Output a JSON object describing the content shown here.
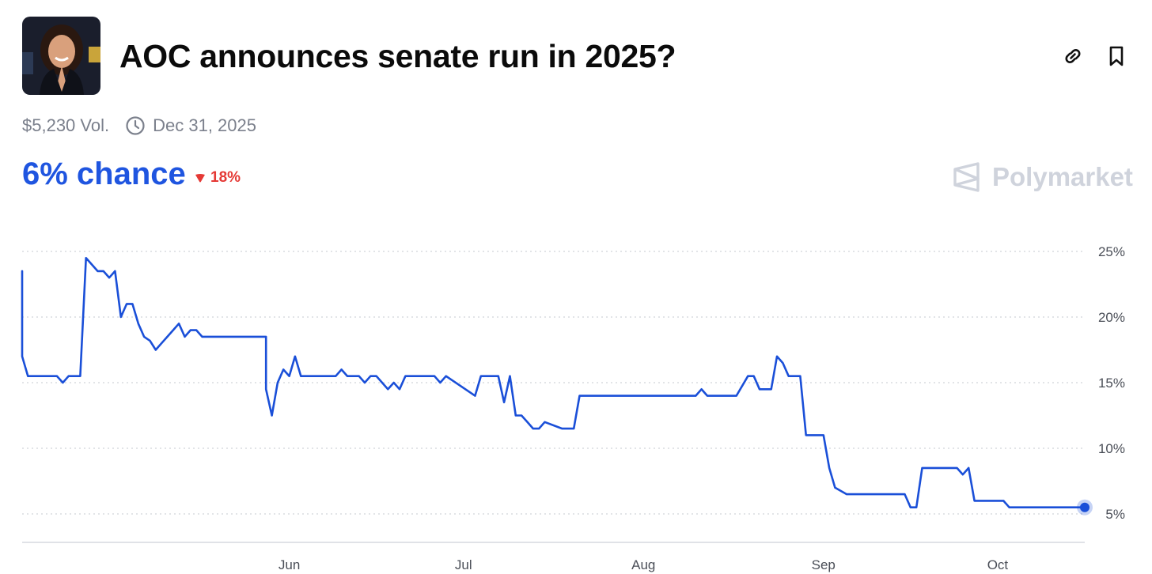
{
  "header": {
    "title": "AOC announces senate run in 2025?",
    "avatar_icon": "portrait-photo"
  },
  "meta": {
    "volume": "$5,230 Vol.",
    "end_date": "Dec 31, 2025"
  },
  "odds": {
    "chance": "6% chance",
    "change": "18%",
    "change_direction": "down",
    "accent_color": "#1f55e0",
    "negative_color": "#e53935"
  },
  "brand": {
    "name": "Polymarket",
    "icon": "polymarket-logo"
  },
  "actions": {
    "link_icon": "link-icon",
    "bookmark_icon": "bookmark-icon"
  },
  "chart_data": {
    "type": "line",
    "x_tick_labels": [
      "Jun",
      "Jul",
      "Aug",
      "Sep",
      "Oct"
    ],
    "y_tick_labels": [
      "25%",
      "20%",
      "15%",
      "10%",
      "5%"
    ],
    "ylim": [
      3,
      25
    ],
    "grid": true,
    "line_color": "#1a4fd8",
    "series": [
      {
        "x": [
          "2025-04-16",
          "2025-04-16",
          "2025-04-17",
          "2025-04-22",
          "2025-04-23",
          "2025-04-24",
          "2025-04-26",
          "2025-04-27",
          "2025-04-28",
          "2025-04-29",
          "2025-04-30",
          "2025-05-01",
          "2025-05-02",
          "2025-05-03",
          "2025-05-04",
          "2025-05-05",
          "2025-05-06",
          "2025-05-07",
          "2025-05-08",
          "2025-05-09",
          "2025-05-10",
          "2025-05-11",
          "2025-05-12",
          "2025-05-13",
          "2025-05-14",
          "2025-05-15",
          "2025-05-16",
          "2025-05-17",
          "2025-05-18",
          "2025-05-19",
          "2025-05-28",
          "2025-05-28",
          "2025-05-29",
          "2025-05-30",
          "2025-05-31",
          "2025-06-01",
          "2025-06-02",
          "2025-06-03",
          "2025-06-05",
          "2025-06-07",
          "2025-06-09",
          "2025-06-10",
          "2025-06-11",
          "2025-06-13",
          "2025-06-14",
          "2025-06-15",
          "2025-06-16",
          "2025-06-17",
          "2025-06-18",
          "2025-06-19",
          "2025-06-20",
          "2025-06-21",
          "2025-06-25",
          "2025-06-26",
          "2025-06-27",
          "2025-06-28",
          "2025-07-03",
          "2025-07-04",
          "2025-07-06",
          "2025-07-07",
          "2025-07-08",
          "2025-07-09",
          "2025-07-10",
          "2025-07-11",
          "2025-07-12",
          "2025-07-13",
          "2025-07-14",
          "2025-07-15",
          "2025-07-18",
          "2025-07-19",
          "2025-07-20",
          "2025-07-21",
          "2025-07-25",
          "2025-07-26",
          "2025-08-10",
          "2025-08-11",
          "2025-08-12",
          "2025-08-16",
          "2025-08-17",
          "2025-08-19",
          "2025-08-20",
          "2025-08-21",
          "2025-08-23",
          "2025-08-24",
          "2025-08-25",
          "2025-08-26",
          "2025-08-27",
          "2025-08-28",
          "2025-08-29",
          "2025-08-30",
          "2025-08-31",
          "2025-09-01",
          "2025-09-02",
          "2025-09-03",
          "2025-09-05",
          "2025-09-06",
          "2025-09-15",
          "2025-09-16",
          "2025-09-17",
          "2025-09-18",
          "2025-09-24",
          "2025-09-25",
          "2025-09-26",
          "2025-09-27",
          "2025-09-28",
          "2025-09-29",
          "2025-09-30",
          "2025-10-01",
          "2025-10-02",
          "2025-10-03",
          "2025-10-04",
          "2025-10-05",
          "2025-10-10",
          "2025-10-11",
          "2025-10-12",
          "2025-10-16"
        ],
        "values": [
          23.5,
          17,
          15.5,
          15.5,
          15,
          15.5,
          15.5,
          24.5,
          24,
          23.5,
          23.5,
          23,
          23.5,
          20,
          21,
          21,
          19.5,
          18.5,
          18.2,
          17.5,
          18,
          18.5,
          19,
          19.5,
          18.5,
          19,
          19,
          18.5,
          18.5,
          18.5,
          18.5,
          14.5,
          12.5,
          15,
          16,
          15.5,
          17,
          15.5,
          15.5,
          15.5,
          15.5,
          16,
          15.5,
          15.5,
          15,
          15.5,
          15.5,
          15,
          14.5,
          15,
          14.5,
          15.5,
          15.5,
          15.5,
          15,
          15.5,
          14,
          15.5,
          15.5,
          15.5,
          13.5,
          15.5,
          12.5,
          12.5,
          12,
          11.5,
          11.5,
          12,
          11.5,
          11.5,
          11.5,
          14,
          14,
          14,
          14,
          14.5,
          14,
          14,
          14,
          15.5,
          15.5,
          14.5,
          14.5,
          17,
          16.5,
          15.5,
          15.5,
          15.5,
          11,
          11,
          11,
          11,
          8.5,
          7,
          6.5,
          6.5,
          6.5,
          5.5,
          5.5,
          8.5,
          8.5,
          8,
          8.5,
          6,
          6,
          6,
          6,
          6,
          6,
          5.5,
          5.5,
          5.5,
          5.5,
          5.5,
          5.5,
          5.5
        ]
      }
    ]
  }
}
